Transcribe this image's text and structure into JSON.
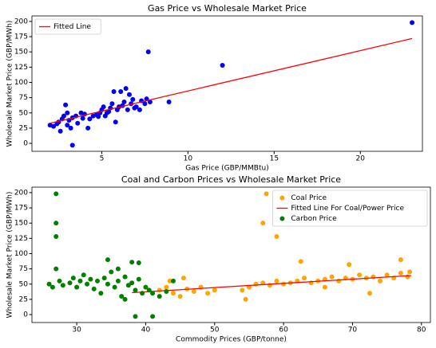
{
  "chart_data": [
    {
      "type": "scatter",
      "title": "Gas Price vs Wholesale Market Price",
      "xlabel": "Gas Price (GBP/MMBtu)",
      "ylabel": "Wholesale Market Price (GBP/MWh)",
      "xlim": [
        0.95,
        23.6
      ],
      "ylim": [
        -13,
        209
      ],
      "xticks": [
        5,
        10,
        15,
        20
      ],
      "yticks": [
        0,
        25,
        50,
        75,
        100,
        125,
        150,
        175,
        200
      ],
      "legend": "upper left",
      "series": [
        {
          "kind": "scatter",
          "color": "#0000ff",
          "x": [
            2,
            2.2,
            2.5,
            2.7,
            2.8,
            2.9,
            3,
            3.1,
            3.2,
            3.3,
            3.3,
            3.5,
            3.6,
            3.8,
            4,
            4.2,
            4.3,
            4.5,
            4.7,
            4.9,
            5,
            5.1,
            5.2,
            5.4,
            5.5,
            5.6,
            5.7,
            5.8,
            5.9,
            6,
            6.1,
            6.2,
            6.3,
            6.4,
            6.5,
            6.6,
            6.7,
            6.8,
            7,
            7.2,
            7.3,
            7.5,
            7.6,
            7.7,
            7.8,
            8.9,
            12,
            23,
            2.4,
            3.9,
            4.8,
            5.3,
            6.9,
            2.6,
            3.0
          ],
          "values": [
            30,
            28,
            35,
            40,
            45,
            63,
            50,
            38,
            25,
            -3,
            42,
            45,
            33,
            50,
            48,
            25,
            40,
            45,
            47,
            50,
            55,
            60,
            45,
            52,
            58,
            65,
            85,
            35,
            55,
            60,
            85,
            62,
            68,
            90,
            55,
            80,
            65,
            72,
            60,
            55,
            70,
            65,
            73,
            150,
            68,
            68,
            128,
            198,
            32,
            41,
            44,
            50,
            58,
            20,
            30
          ]
        },
        {
          "kind": "line",
          "name": "Fitted Line",
          "color": "#ff0000",
          "x": [
            2,
            23
          ],
          "values": [
            33,
            172
          ]
        }
      ]
    },
    {
      "type": "scatter",
      "title": "Coal and Carbon Prices vs Wholesale Market Price",
      "xlabel": "Commodity Prices (GBP/tonne)",
      "ylabel": "Wholesale Market Price (GBP/MWh)",
      "xlim": [
        23.5,
        81.3
      ],
      "ylim": [
        -13,
        209
      ],
      "xticks": [
        30,
        40,
        50,
        60,
        70,
        80
      ],
      "yticks": [
        0,
        25,
        50,
        75,
        100,
        125,
        150,
        175,
        200
      ],
      "legend": "upper right",
      "series": [
        {
          "kind": "scatter",
          "name": "Coal Price",
          "color": "#ffa500",
          "x": [
            42,
            43,
            44,
            45,
            46,
            47,
            48,
            49,
            50,
            54,
            55,
            56,
            57,
            58,
            59,
            60,
            61,
            62,
            63,
            64,
            65,
            66,
            67,
            68,
            69,
            70,
            71,
            72,
            72.5,
            73,
            74,
            75,
            76,
            77,
            78,
            54.5,
            66,
            45.5,
            43.5,
            78.3,
            57.5,
            57,
            59,
            62.5,
            69.5,
            77
          ],
          "values": [
            40,
            45,
            35,
            30,
            42,
            38,
            45,
            35,
            40,
            40,
            45,
            50,
            52,
            48,
            55,
            50,
            52,
            55,
            60,
            52,
            55,
            58,
            62,
            55,
            60,
            58,
            65,
            60,
            35,
            62,
            55,
            65,
            60,
            68,
            62,
            25,
            45,
            60,
            55,
            70,
            198,
            150,
            128,
            87,
            82,
            90
          ]
        },
        {
          "kind": "line",
          "name": "Fitted Line For Coal/Power Price",
          "color": "#ff0000",
          "x": [
            38,
            78.5
          ],
          "values": [
            36,
            64
          ]
        },
        {
          "kind": "scatter",
          "name": "Carbon Price",
          "color": "#008000",
          "x": [
            26,
            26.5,
            27.5,
            28,
            29,
            29.5,
            30,
            30.5,
            31,
            31.5,
            32,
            32.5,
            33,
            33.5,
            34,
            34.5,
            35,
            35.5,
            36,
            36.5,
            37,
            37.5,
            38,
            38.5,
            39,
            39.5,
            40,
            40.5,
            41,
            42,
            43,
            44,
            36,
            37,
            27,
            27,
            27,
            27,
            34.5,
            38,
            39,
            38.5,
            41
          ],
          "values": [
            50,
            45,
            55,
            48,
            52,
            60,
            45,
            55,
            65,
            50,
            58,
            42,
            55,
            35,
            60,
            50,
            70,
            45,
            55,
            30,
            62,
            48,
            52,
            40,
            58,
            35,
            45,
            40,
            35,
            30,
            38,
            55,
            75,
            25,
            198,
            150,
            128,
            75,
            90,
            86,
            85,
            -3,
            -3
          ]
        }
      ]
    }
  ]
}
